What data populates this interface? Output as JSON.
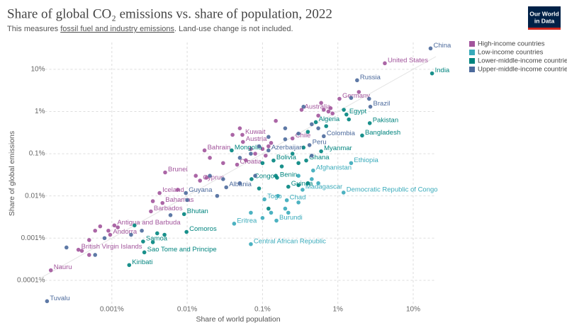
{
  "chart_data": {
    "type": "scatter",
    "title": "Share of global CO₂ emissions vs. share of population, 2022",
    "subtitle_parts": [
      "This measures ",
      "fossil fuel and industry emissions",
      ". Land-use change is not included."
    ],
    "logo": [
      "Our World",
      "in Data"
    ],
    "x_label": "Share of world population",
    "y_label": "Share of global emissions",
    "xscale": "log",
    "yscale": "log",
    "grid": true,
    "legend": "right",
    "xlim": [
      0.0001,
      20
    ],
    "ylim": [
      3e-05,
      40
    ],
    "xticks": [
      {
        "value": 0.001,
        "label": "0.001%"
      },
      {
        "value": 0.01,
        "label": "0.01%"
      },
      {
        "value": 0.1,
        "label": "0.1%"
      },
      {
        "value": 1,
        "label": "1%"
      },
      {
        "value": 10,
        "label": "10%"
      }
    ],
    "yticks": [
      {
        "value": 0.0001,
        "label": "0.0001%"
      },
      {
        "value": 0.001,
        "label": "0.001%"
      },
      {
        "value": 0.01,
        "label": "0.01%"
      },
      {
        "value": 0.1,
        "label": "0.1%"
      },
      {
        "value": 1,
        "label": "1%"
      },
      {
        "value": 10,
        "label": "10%"
      }
    ],
    "series": [
      {
        "name": "High-income countries",
        "color": "#a2559c",
        "labels": [
          "United States",
          "Germany",
          "Australia",
          "Kuwait",
          "Chile",
          "Austria",
          "Bahrain",
          "Croatia",
          "Brunei",
          "Cyprus",
          "Iceland",
          "Bahamas",
          "Barbados",
          "Antigua and Barbuda",
          "Andorra",
          "British Virgin Islands",
          "Nauru",
          null,
          null,
          null,
          null,
          null,
          null,
          null,
          null,
          null,
          null,
          null,
          null,
          null,
          null,
          null,
          null,
          null,
          null,
          null,
          null,
          null,
          null,
          null,
          null,
          null,
          null,
          null,
          null,
          null,
          null
        ],
        "x": [
          4.2,
          1.05,
          0.33,
          0.054,
          0.25,
          0.055,
          0.017,
          0.046,
          0.0051,
          0.0148,
          0.0043,
          0.0047,
          0.0033,
          0.00108,
          0.00095,
          0.00036,
          0.000155,
          0.8,
          0.75,
          0.55,
          0.85,
          0.6,
          0.15,
          0.13,
          0.1,
          0.07,
          0.12,
          0.08,
          0.06,
          0.11,
          0.02,
          0.018,
          0.0075,
          0.0035,
          0.0009,
          0.0007,
          0.0006,
          0.0012,
          0.0005,
          0.0004,
          0.0005,
          1.9,
          0.65,
          0.04,
          0.05,
          0.03,
          0.013
        ],
        "values": [
          13.9,
          2.0,
          1.1,
          0.28,
          0.23,
          0.19,
          0.12,
          0.055,
          0.036,
          0.023,
          0.0117,
          0.0068,
          0.0043,
          0.002,
          0.0012,
          0.00053,
          0.000173,
          1.2,
          1.0,
          0.8,
          0.9,
          1.6,
          0.6,
          0.18,
          0.13,
          0.13,
          0.15,
          0.1,
          0.07,
          0.09,
          0.08,
          0.027,
          0.014,
          0.0075,
          0.0015,
          0.0019,
          0.0015,
          0.0018,
          0.0009,
          0.0005,
          0.0004,
          2.9,
          1.1,
          0.28,
          0.4,
          0.06,
          0.03
        ]
      },
      {
        "name": "Low-income countries",
        "color": "#38aaba",
        "labels": [
          "Ethiopia",
          "Afghanistan",
          "Madagascar",
          "Democratic Republic of Congo",
          "Togo",
          "Chad",
          "Burundi",
          "Eritrea",
          "Central African Republic",
          null,
          null,
          null,
          null,
          null,
          null,
          null,
          null,
          null,
          null
        ],
        "x": [
          1.5,
          0.47,
          0.34,
          1.19,
          0.106,
          0.21,
          0.153,
          0.042,
          0.07,
          0.55,
          0.45,
          0.3,
          0.2,
          0.16,
          0.13,
          0.22,
          0.1,
          0.07,
          0.3
        ],
        "values": [
          0.06,
          0.04,
          0.014,
          0.012,
          0.0083,
          0.0079,
          0.0026,
          0.0022,
          0.00072,
          0.02,
          0.025,
          0.007,
          0.005,
          0.01,
          0.004,
          0.004,
          0.003,
          0.004,
          0.03
        ]
      },
      {
        "name": "Lower-middle-income countries",
        "color": "#00847e",
        "labels": [
          "India",
          "Egypt",
          "Pakistan",
          "Algeria",
          "Bangladesh",
          "Myanmar",
          "Mongolia",
          "Bolivia",
          "Ghana",
          "Congo",
          "Benin",
          "Guinea",
          "Bhutan",
          "Comoros",
          "Samoa",
          "Sao Tome and Principe",
          "Kiribati",
          null,
          null,
          null,
          null,
          null,
          null,
          null,
          null,
          null,
          null,
          null,
          null,
          null,
          null,
          null,
          null,
          null,
          null
        ],
        "x": [
          17.8,
          1.3,
          2.65,
          0.51,
          2.1,
          0.6,
          0.039,
          0.14,
          0.38,
          0.0715,
          0.156,
          0.22,
          0.0091,
          0.0098,
          0.0026,
          0.0027,
          0.0017,
          1.2,
          1.4,
          0.7,
          0.4,
          0.35,
          0.3,
          0.25,
          0.18,
          0.15,
          0.1,
          0.09,
          0.4,
          0.3,
          0.005,
          0.002,
          0.0035,
          0.004,
          0.12
        ],
        "values": [
          8.0,
          0.85,
          0.53,
          0.56,
          0.27,
          0.114,
          0.12,
          0.069,
          0.069,
          0.025,
          0.027,
          0.0165,
          0.0037,
          0.0014,
          0.00083,
          0.00046,
          0.00023,
          1.1,
          0.65,
          0.45,
          0.33,
          0.14,
          0.06,
          0.1,
          0.05,
          0.03,
          0.06,
          0.015,
          0.02,
          0.018,
          0.0012,
          0.002,
          0.0008,
          0.0013,
          0.005
        ]
      },
      {
        "name": "Upper-middle-income countries",
        "color": "#4c6a9c",
        "labels": [
          "China",
          "Russia",
          "Brazil",
          "Colombia",
          "Peru",
          "Azerbaijan",
          "Albania",
          "Guyana",
          "Tuvalu",
          null,
          null,
          null,
          null,
          null,
          null,
          null,
          null,
          null,
          null,
          null,
          null,
          null,
          null,
          null,
          null,
          null,
          null,
          null,
          null,
          null,
          null,
          null,
          null,
          null
        ],
        "x": [
          17.0,
          1.8,
          2.7,
          0.65,
          0.42,
          0.12,
          0.033,
          0.0096,
          0.000138,
          2.6,
          1.5,
          0.45,
          0.55,
          0.3,
          0.2,
          0.12,
          0.09,
          0.07,
          0.05,
          0.08,
          0.05,
          0.03,
          0.02,
          0.025,
          0.01,
          0.006,
          0.0018,
          0.0008,
          0.0025,
          0.00025,
          0.0006,
          0.35,
          0.45,
          0.2
        ],
        "values": [
          31.3,
          5.5,
          1.3,
          0.26,
          0.16,
          0.12,
          0.016,
          0.0117,
          3.2e-05,
          2.0,
          2.1,
          0.5,
          0.4,
          0.3,
          0.4,
          0.25,
          0.15,
          0.1,
          0.08,
          0.03,
          0.02,
          0.025,
          0.03,
          0.01,
          0.008,
          0.0035,
          0.0012,
          0.001,
          0.0015,
          0.0006,
          0.0004,
          1.3,
          0.09,
          0.22
        ]
      }
    ]
  }
}
